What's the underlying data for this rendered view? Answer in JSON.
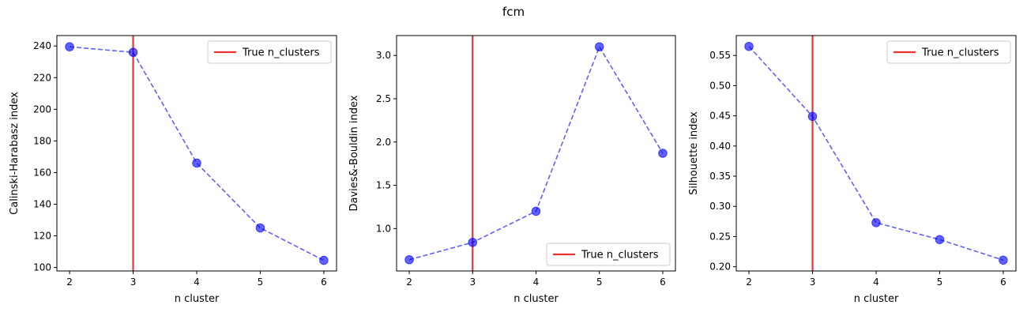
{
  "figure": {
    "title": "fcm"
  },
  "colors": {
    "series": "#0000ff",
    "truth": "#ee3333",
    "frame": "#000000",
    "legend_border": "#cccccc"
  },
  "chart_data": [
    {
      "type": "line",
      "x": [
        2,
        3,
        4,
        5,
        6
      ],
      "values": [
        239.5,
        236,
        166,
        125,
        104.5
      ],
      "xlabel": "n cluster",
      "ylabel": "Calinski-Harabasz index",
      "xlim": [
        1.8,
        6.2
      ],
      "ylim": [
        97.8,
        246.6
      ],
      "xticks": [
        2,
        3,
        4,
        5,
        6
      ],
      "yticks": [
        100,
        120,
        140,
        160,
        180,
        200,
        220,
        240
      ],
      "ytick_decimals": 0,
      "vline": {
        "x": 3,
        "label": "True n_clusters"
      },
      "legend": "top-right",
      "grid": false
    },
    {
      "type": "line",
      "x": [
        2,
        3,
        4,
        5,
        6
      ],
      "values": [
        0.64,
        0.84,
        1.2,
        3.1,
        1.87
      ],
      "xlabel": "n cluster",
      "ylabel": "Davies&-Bouldin index",
      "xlim": [
        1.8,
        6.2
      ],
      "ylim": [
        0.51,
        3.23
      ],
      "xticks": [
        2,
        3,
        4,
        5,
        6
      ],
      "yticks": [
        1.0,
        1.5,
        2.0,
        2.5,
        3.0
      ],
      "ytick_decimals": 1,
      "vline": {
        "x": 3,
        "label": "True n_clusters"
      },
      "legend": "bottom-right",
      "grid": false
    },
    {
      "type": "line",
      "x": [
        2,
        3,
        4,
        5,
        6
      ],
      "values": [
        0.565,
        0.449,
        0.273,
        0.245,
        0.211
      ],
      "xlabel": "n cluster",
      "ylabel": "Silhouette index",
      "xlim": [
        1.8,
        6.2
      ],
      "ylim": [
        0.193,
        0.583
      ],
      "xticks": [
        2,
        3,
        4,
        5,
        6
      ],
      "yticks": [
        0.2,
        0.25,
        0.3,
        0.35,
        0.4,
        0.45,
        0.5,
        0.55
      ],
      "ytick_decimals": 2,
      "vline": {
        "x": 3,
        "label": "True n_clusters"
      },
      "legend": "top-right",
      "grid": false
    }
  ]
}
